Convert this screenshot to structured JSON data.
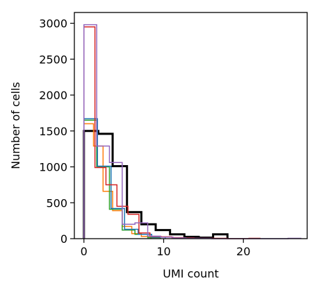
{
  "chart_data": {
    "type": "step-histogram",
    "xlabel": "UMI count",
    "ylabel": "Number of cells",
    "xlim": [
      -1.2,
      28
    ],
    "ylim": [
      0,
      3150
    ],
    "xticks": [
      0,
      10,
      20
    ],
    "yticks": [
      0,
      500,
      1000,
      1500,
      2000,
      2500,
      3000
    ],
    "grid": false,
    "legend": false,
    "series": [
      {
        "color": "#000000",
        "linewidth": 3,
        "edges": [
          0,
          1.8,
          3.6,
          5.4,
          7.2,
          9,
          10.8,
          12.6,
          14.4,
          16.2,
          18
        ],
        "counts": [
          1500,
          1460,
          1010,
          370,
          200,
          120,
          60,
          25,
          15,
          60
        ]
      },
      {
        "color": "#ff7f0e",
        "linewidth": 1.5,
        "edges": [
          0,
          1.2,
          2.4,
          3.6,
          4.8,
          6,
          7.2,
          8.4
        ],
        "counts": [
          1600,
          1290,
          660,
          390,
          170,
          70,
          30
        ]
      },
      {
        "color": "#2ca02c",
        "linewidth": 1.5,
        "edges": [
          0,
          1.6,
          3.2,
          4.8,
          6.4,
          8,
          9.6
        ],
        "counts": [
          1650,
          1000,
          410,
          120,
          60,
          15
        ]
      },
      {
        "color": "#1f77b4",
        "linewidth": 1.5,
        "edges": [
          0,
          1.7,
          3.4,
          5.1,
          6.8,
          8.5,
          10.2
        ],
        "counts": [
          1670,
          1010,
          420,
          130,
          60,
          20
        ]
      },
      {
        "color": "#d62728",
        "linewidth": 1.5,
        "edges": [
          0,
          1.38,
          2.76,
          4.14,
          5.52,
          6.9,
          8.28,
          9.66,
          11.04,
          12.42,
          13.8,
          15.18,
          16.56,
          17.94,
          19.32,
          20.7,
          22.08
        ],
        "counts": [
          2950,
          990,
          750,
          450,
          340,
          80,
          30,
          25,
          15,
          10,
          5,
          5,
          5,
          0,
          0,
          5
        ]
      },
      {
        "color": "#9467bd",
        "linewidth": 1.5,
        "edges": [
          0,
          1.6,
          3.2,
          4.8,
          6.4,
          8,
          9.6,
          11.2,
          12.8,
          14.4,
          16,
          17.6,
          19.2,
          20.8,
          22.4,
          24,
          25.6,
          27.2
        ],
        "counts": [
          2980,
          1290,
          1060,
          200,
          220,
          35,
          20,
          10,
          5,
          5,
          0,
          0,
          0,
          0,
          0,
          0,
          5
        ]
      }
    ]
  }
}
